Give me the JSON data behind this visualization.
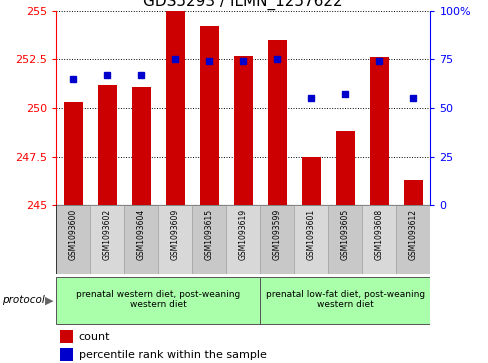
{
  "title": "GDS5293 / ILMN_1257622",
  "samples": [
    "GSM1093600",
    "GSM1093602",
    "GSM1093604",
    "GSM1093609",
    "GSM1093615",
    "GSM1093619",
    "GSM1093599",
    "GSM1093601",
    "GSM1093605",
    "GSM1093608",
    "GSM1093612"
  ],
  "counts": [
    250.3,
    251.2,
    251.1,
    255.0,
    254.2,
    252.7,
    253.5,
    247.5,
    248.8,
    252.6,
    246.3
  ],
  "percentiles": [
    65,
    67,
    67,
    75,
    74,
    74,
    75,
    55,
    57,
    74,
    55
  ],
  "ylim": [
    245,
    255
  ],
  "yticks": [
    245,
    247.5,
    250,
    252.5,
    255
  ],
  "ytick_labels": [
    "245",
    "247.5",
    "250",
    "252.5",
    "255"
  ],
  "y2lim": [
    0,
    100
  ],
  "y2ticks": [
    0,
    25,
    50,
    75,
    100
  ],
  "y2tick_labels": [
    "0",
    "25",
    "50",
    "75",
    "100%"
  ],
  "bar_color": "#cc0000",
  "dot_color": "#0000cc",
  "group1_label": "prenatal western diet, post-weaning\nwestern diet",
  "group2_label": "prenatal low-fat diet, post-weaning\nwestern diet",
  "group1_indices": [
    0,
    1,
    2,
    3,
    4,
    5
  ],
  "group2_indices": [
    6,
    7,
    8,
    9,
    10
  ],
  "group1_color": "#aaffaa",
  "group2_color": "#aaffaa",
  "protocol_label": "protocol",
  "legend_count_label": "count",
  "legend_percentile_label": "percentile rank within the sample",
  "title_fontsize": 11,
  "tick_fontsize": 8,
  "label_fontsize": 7,
  "cell_color_odd": "#d0d0d0",
  "cell_color_even": "#c0c0c0",
  "bg_color": "#ffffff"
}
